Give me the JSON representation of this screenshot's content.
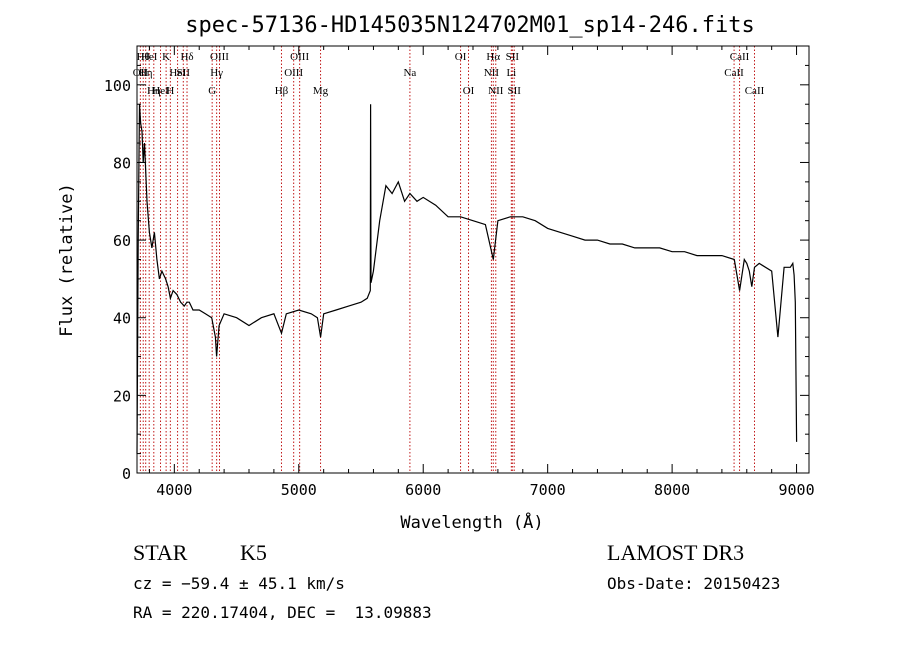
{
  "chart_data": {
    "type": "line",
    "title": "spec-57136-HD145035N124702M01_sp14-246.fits",
    "xlabel": "Wavelength (Å)",
    "ylabel": "Flux (relative)",
    "xlim": [
      3700,
      9100
    ],
    "ylim": [
      0,
      110
    ],
    "xticks": [
      4000,
      5000,
      6000,
      7000,
      8000,
      9000
    ],
    "yticks": [
      0,
      20,
      40,
      60,
      80,
      100
    ],
    "grid": false,
    "series": [
      {
        "x": [
          3700,
          3710,
          3720,
          3730,
          3740,
          3750,
          3760,
          3780,
          3800,
          3820,
          3840,
          3860,
          3880,
          3900,
          3930,
          3950,
          3968,
          3990,
          4020,
          4050,
          4080,
          4101,
          4120,
          4150,
          4200,
          4250,
          4300,
          4330,
          4340,
          4360,
          4400,
          4500,
          4600,
          4700,
          4800,
          4861,
          4900,
          5000,
          5100,
          5150,
          5175,
          5200,
          5300,
          5400,
          5500,
          5550,
          5575,
          5577,
          5580,
          5600,
          5650,
          5700,
          5750,
          5800,
          5850,
          5893,
          5950,
          6000,
          6100,
          6200,
          6300,
          6400,
          6500,
          6563,
          6600,
          6700,
          6800,
          6900,
          7000,
          7100,
          7200,
          7300,
          7400,
          7500,
          7600,
          7700,
          7800,
          7900,
          8000,
          8100,
          8200,
          8300,
          8400,
          8500,
          8542,
          8580,
          8600,
          8620,
          8640,
          8662,
          8700,
          8800,
          8850,
          8900,
          8950,
          8970,
          8980,
          8990,
          9000
        ],
        "y": [
          5,
          60,
          95,
          90,
          88,
          80,
          85,
          70,
          62,
          58,
          62,
          55,
          50,
          52,
          50,
          48,
          45,
          47,
          46,
          44,
          43,
          44,
          44,
          42,
          42,
          41,
          40,
          35,
          30,
          38,
          41,
          40,
          38,
          40,
          41,
          36,
          41,
          42,
          41,
          40,
          35,
          41,
          42,
          43,
          44,
          45,
          47,
          95,
          49,
          52,
          65,
          74,
          72,
          75,
          70,
          72,
          70,
          71,
          69,
          66,
          66,
          65,
          64,
          55,
          65,
          66,
          66,
          65,
          63,
          62,
          61,
          60,
          60,
          59,
          59,
          58,
          58,
          58,
          57,
          57,
          56,
          56,
          56,
          55,
          47,
          55,
          54,
          52,
          48,
          53,
          54,
          52,
          35,
          53,
          53,
          54,
          51,
          44,
          8
        ]
      }
    ],
    "annotations": [
      {
        "x": 3727,
        "row": 2,
        "label": "OII"
      },
      {
        "x": 3750,
        "row": 1,
        "label": "Hθ"
      },
      {
        "x": 3770,
        "row": 2,
        "label": "Hη"
      },
      {
        "x": 3798,
        "row": 1,
        "label": "HeI"
      },
      {
        "x": 3835,
        "row": 3,
        "label": "Hη"
      },
      {
        "x": 3889,
        "row": 3,
        "label": "HeI"
      },
      {
        "x": 3934,
        "row": 1,
        "label": "K"
      },
      {
        "x": 3968,
        "row": 3,
        "label": "H"
      },
      {
        "x": 4026,
        "row": 2,
        "label": "HeI"
      },
      {
        "x": 4072,
        "row": 2,
        "label": "SII"
      },
      {
        "x": 4102,
        "row": 1,
        "label": "Hδ"
      },
      {
        "x": 4304,
        "row": 3,
        "label": "G"
      },
      {
        "x": 4340,
        "row": 2,
        "label": "Hγ"
      },
      {
        "x": 4363,
        "row": 1,
        "label": "OIII"
      },
      {
        "x": 4861,
        "row": 3,
        "label": "Hβ"
      },
      {
        "x": 4959,
        "row": 2,
        "label": "OIII"
      },
      {
        "x": 5007,
        "row": 1,
        "label": "OIII"
      },
      {
        "x": 5175,
        "row": 3,
        "label": "Mg"
      },
      {
        "x": 5893,
        "row": 2,
        "label": "Na"
      },
      {
        "x": 6300,
        "row": 1,
        "label": "OI"
      },
      {
        "x": 6364,
        "row": 3,
        "label": "OI"
      },
      {
        "x": 6548,
        "row": 2,
        "label": "NII"
      },
      {
        "x": 6563,
        "row": 1,
        "label": "Hα"
      },
      {
        "x": 6583,
        "row": 3,
        "label": "NII"
      },
      {
        "x": 6708,
        "row": 2,
        "label": "Li"
      },
      {
        "x": 6716,
        "row": 1,
        "label": "SII"
      },
      {
        "x": 6731,
        "row": 3,
        "label": "SII"
      },
      {
        "x": 8498,
        "row": 2,
        "label": "CaII"
      },
      {
        "x": 8542,
        "row": 1,
        "label": "CaII"
      },
      {
        "x": 8662,
        "row": 3,
        "label": "CaII"
      }
    ]
  },
  "info": {
    "object_class": "STAR",
    "subclass": "K5",
    "survey": "LAMOST DR3",
    "redshift": "cz = −59.4 ± 45.1 km/s",
    "obs_date": "Obs-Date: 20150423",
    "coords": "RA = 220.17404, DEC =  13.09883"
  }
}
